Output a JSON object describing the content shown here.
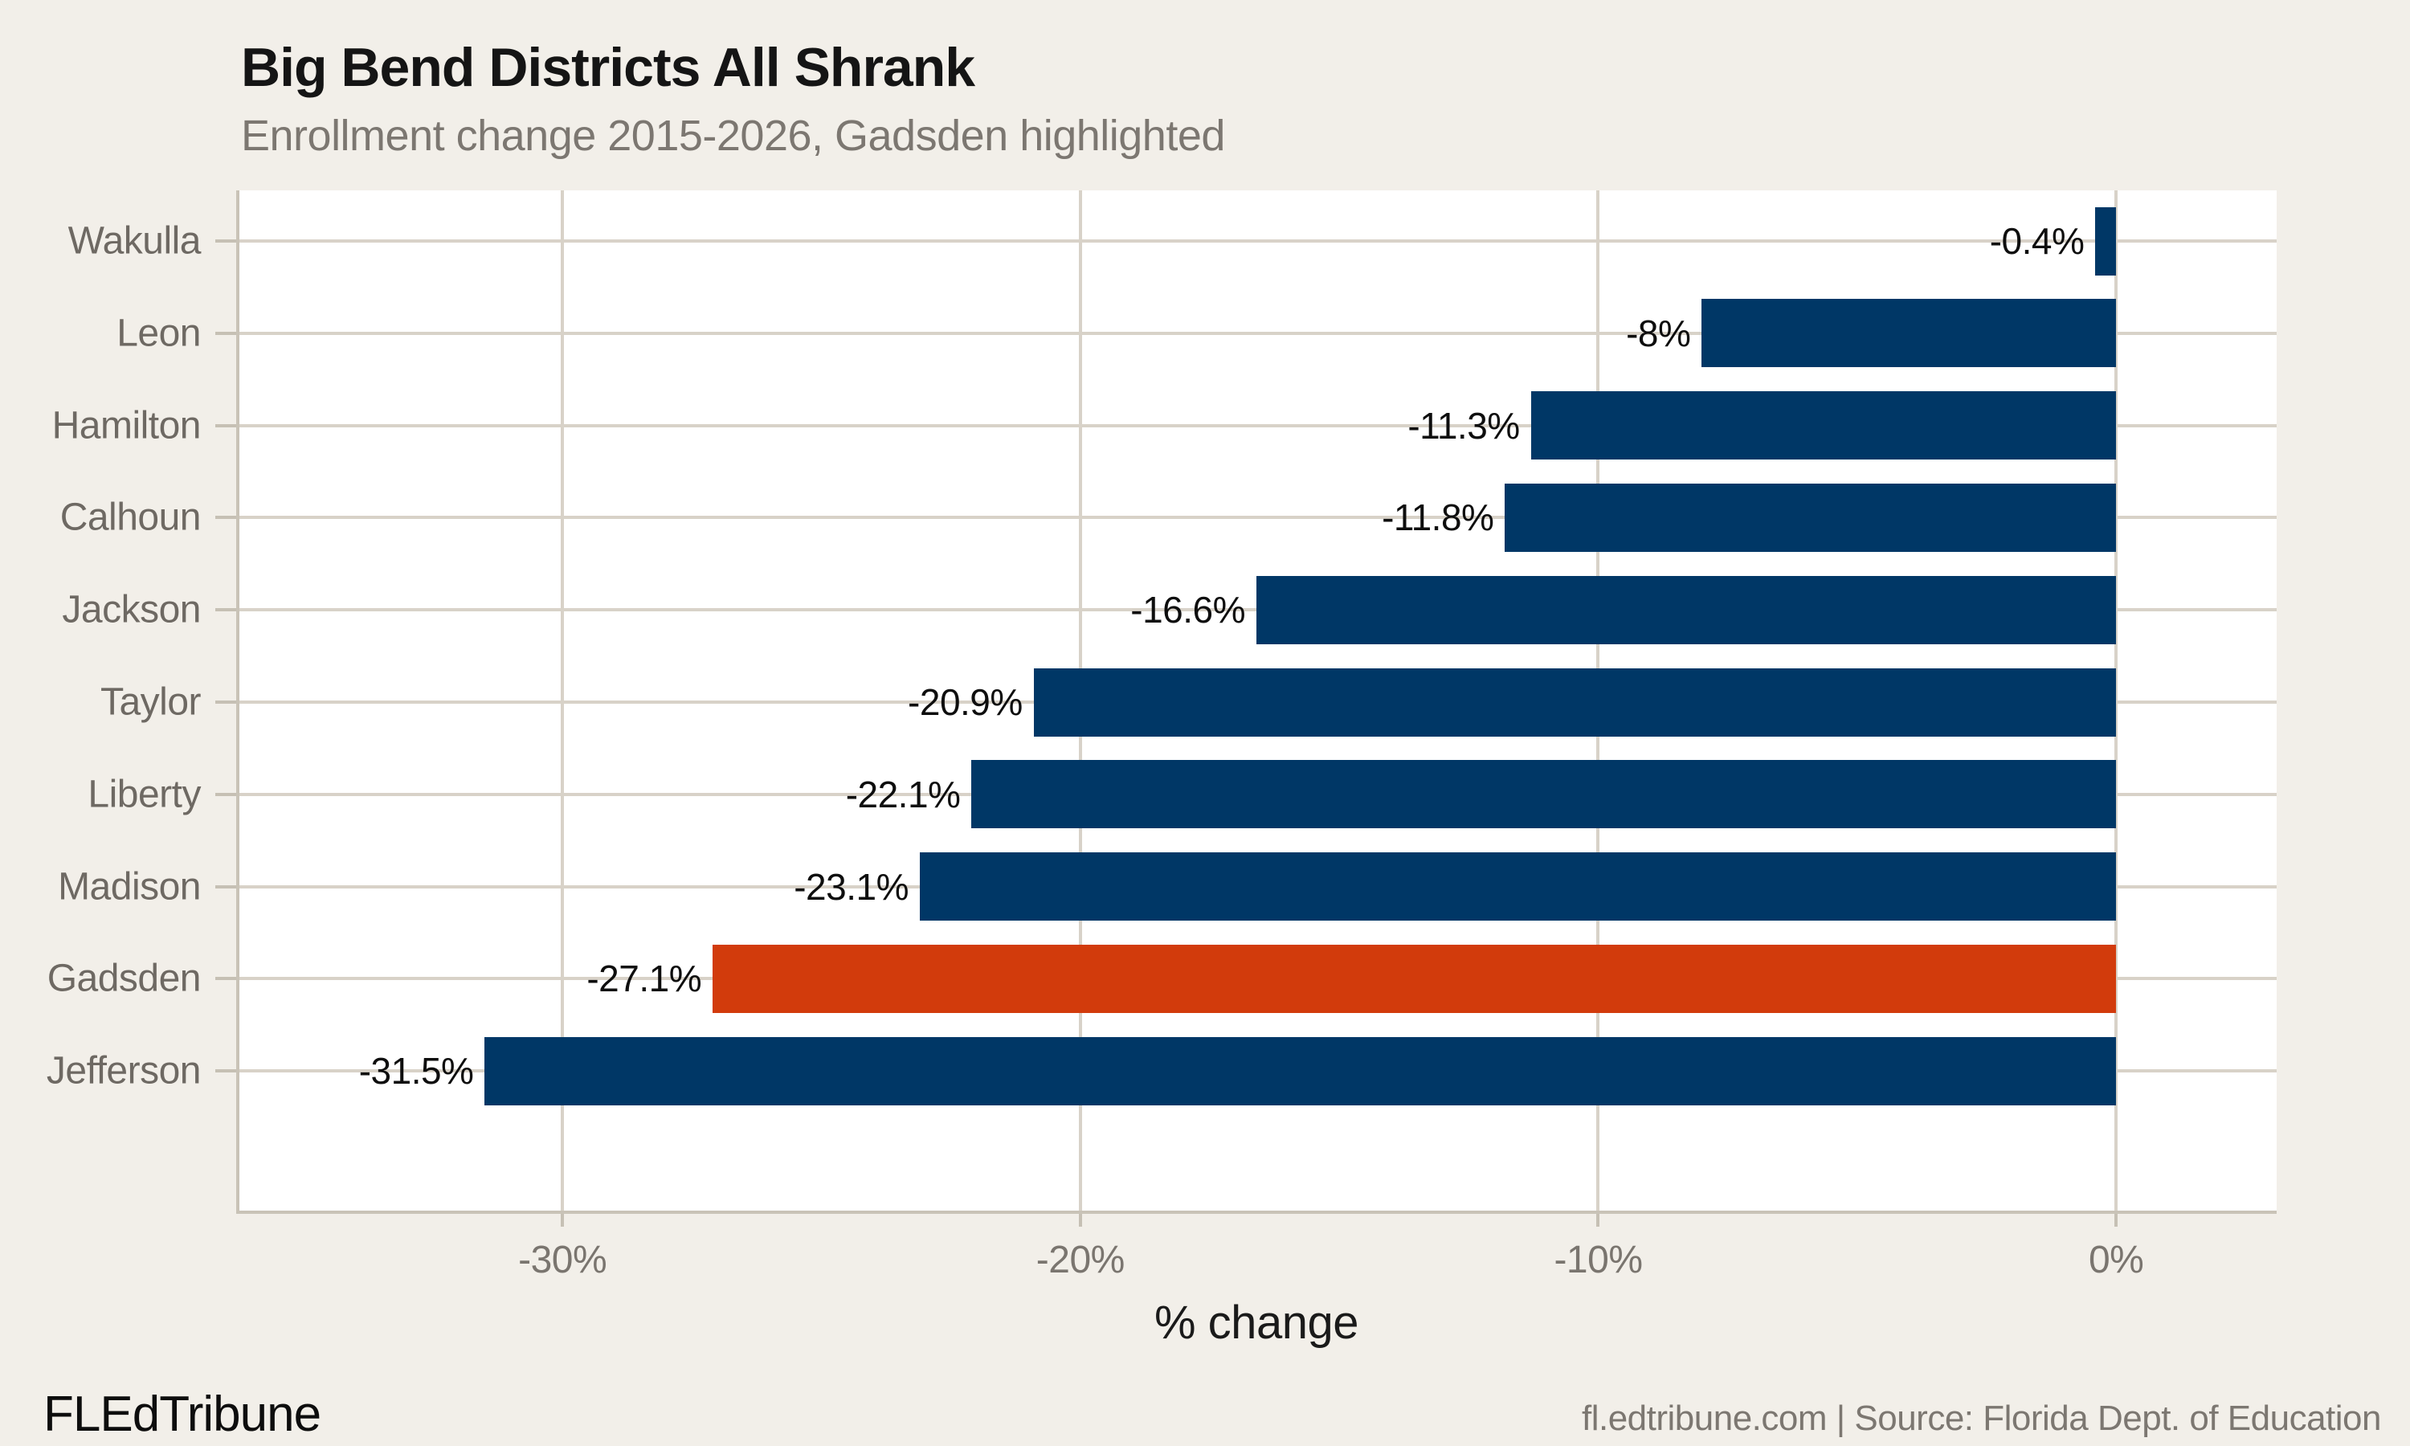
{
  "header": {
    "title": "Big Bend Districts All Shrank",
    "subtitle": "Enrollment change 2015-2026, Gadsden highlighted"
  },
  "footer": {
    "brand": "FLEdTribune",
    "source": "fl.edtribune.com | Source: Florida Dept. of Education"
  },
  "colors": {
    "background": "#f2efe9",
    "plot_background": "#ffffff",
    "gridline": "#d8d2c8",
    "spine": "#c9c3b7",
    "tick": "#c6c0b4",
    "bar": "#003766",
    "highlight": "#d23b0c",
    "title_text": "#151515",
    "muted_text": "#7c7771",
    "value_text": "#0e0e0e"
  },
  "chart_data": {
    "type": "bar",
    "orientation": "horizontal",
    "title": "Big Bend Districts All Shrank",
    "subtitle": "Enrollment change 2015-2026, Gadsden highlighted",
    "categories": [
      "Wakulla",
      "Leon",
      "Hamilton",
      "Calhoun",
      "Jackson",
      "Taylor",
      "Liberty",
      "Madison",
      "Gadsden",
      "Jefferson"
    ],
    "values": [
      -0.4,
      -8,
      -11.3,
      -11.8,
      -16.6,
      -20.9,
      -22.1,
      -23.1,
      -27.1,
      -31.5
    ],
    "value_labels": [
      "-0.4%",
      "-8%",
      "-11.3%",
      "-11.8%",
      "-16.6%",
      "-20.9%",
      "-22.1%",
      "-23.1%",
      "-27.1%",
      "-31.5%"
    ],
    "highlighted_category": "Gadsden",
    "xlabel": "% change",
    "ylabel": "",
    "xlim": [
      -36.3,
      3.1
    ],
    "xticks": [
      {
        "value": -30,
        "label": "-30%"
      },
      {
        "value": -20,
        "label": "-20%"
      },
      {
        "value": -10,
        "label": "-10%"
      },
      {
        "value": 0,
        "label": "0%"
      }
    ],
    "grid": true,
    "legend": false
  }
}
